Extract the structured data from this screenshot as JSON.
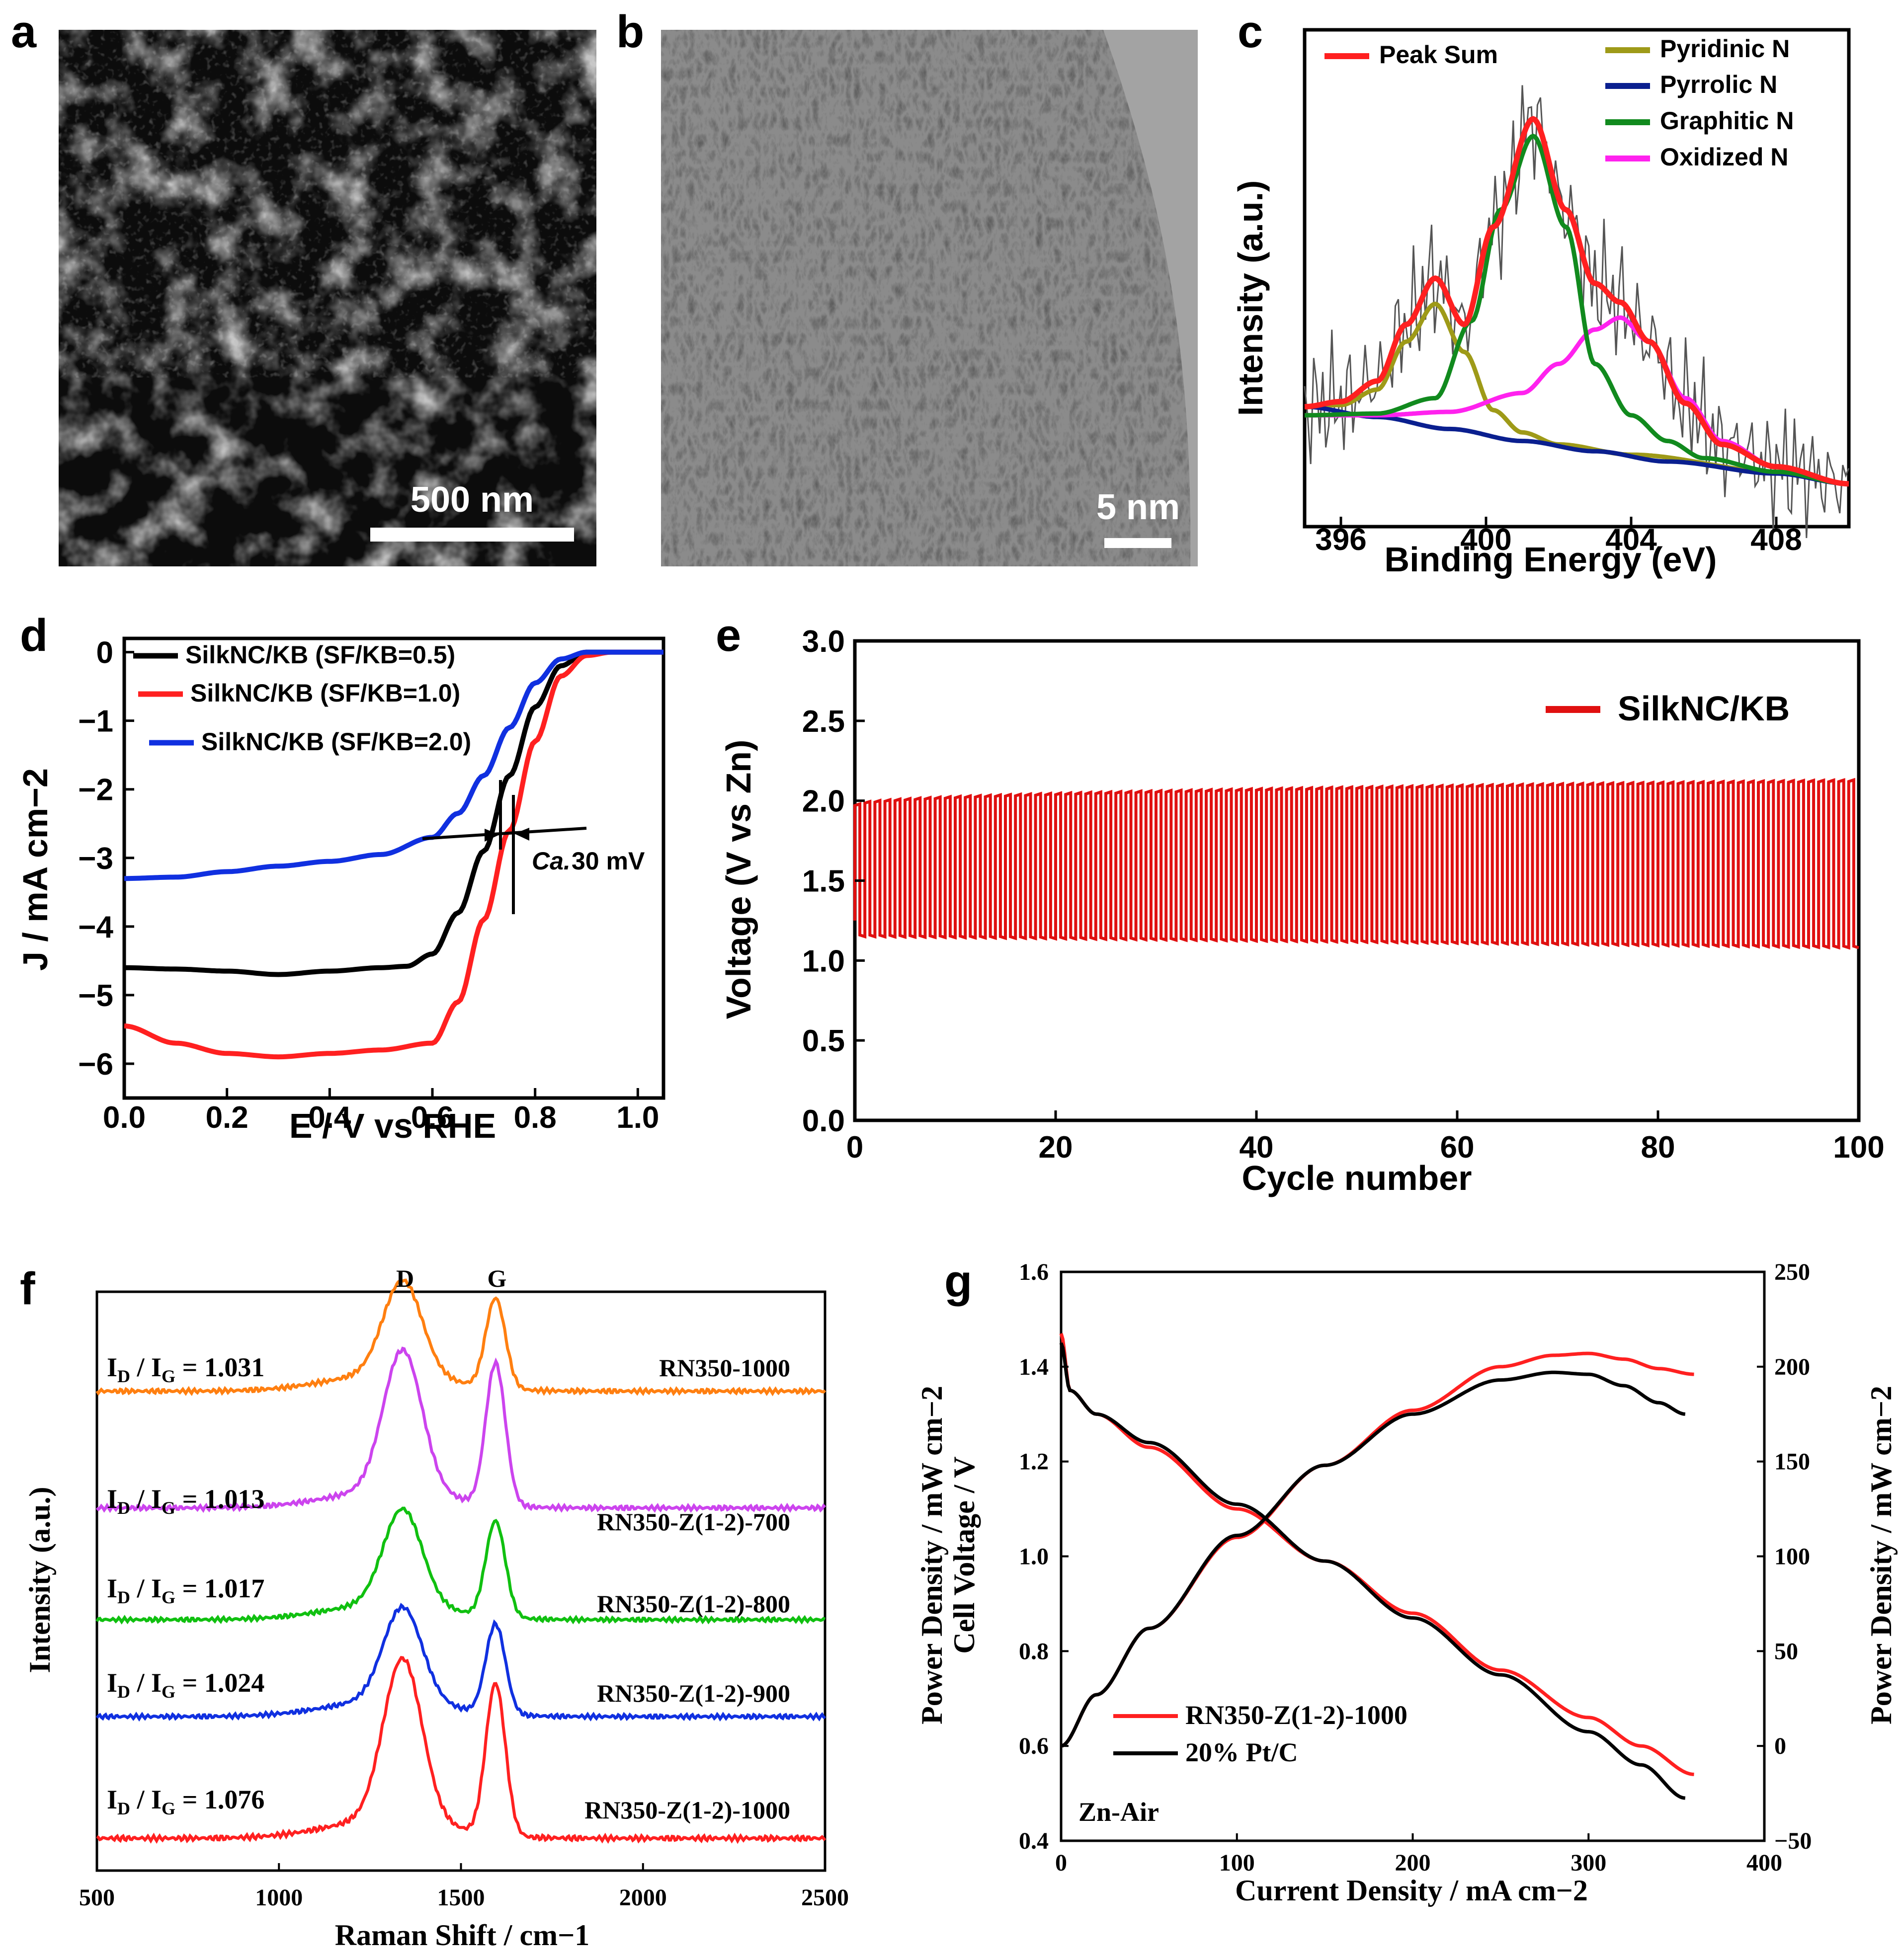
{
  "panel_labels": {
    "a": "a",
    "b": "b",
    "c": "c",
    "d": "d",
    "e": "e",
    "f": "f",
    "g": "g"
  },
  "images": {
    "a_scale": "500 nm",
    "b_scale": "5 nm"
  },
  "chart_data": [
    {
      "panel": "c",
      "type": "line",
      "title": "",
      "xlabel": "Binding Energy (eV)",
      "ylabel": "Intensity (a.u.)",
      "xlim": [
        395,
        410
      ],
      "x_ticks": [
        "396",
        "400",
        "404",
        "408"
      ],
      "grid": false,
      "legend_position": "top",
      "series": [
        {
          "name": "Peak Sum",
          "color": "#ff2020",
          "x": [
            395,
            396,
            397,
            397.8,
            398.6,
            399.4,
            400.2,
            401.3,
            402.2,
            403,
            403.7,
            404.5,
            405.5,
            406.5,
            408,
            410
          ],
          "y": [
            0.4,
            0.43,
            0.55,
            0.88,
            1.15,
            0.88,
            1.45,
            2.08,
            1.55,
            1.12,
            1.01,
            0.78,
            0.42,
            0.18,
            0.05,
            -0.05
          ]
        },
        {
          "name": "Pyridinic N",
          "color": "#9e9a18",
          "x": [
            395,
            396,
            397,
            397.8,
            398.6,
            399.4,
            400.2,
            401,
            402,
            404,
            408,
            410
          ],
          "y": [
            0.4,
            0.41,
            0.5,
            0.78,
            1.0,
            0.72,
            0.38,
            0.25,
            0.18,
            0.12,
            0.02,
            -0.05
          ]
        },
        {
          "name": "Pyrrolic N",
          "color": "#0a1f8f",
          "x": [
            395,
            397,
            399,
            401,
            403,
            405,
            408,
            410
          ],
          "y": [
            0.4,
            0.34,
            0.27,
            0.2,
            0.14,
            0.08,
            0.01,
            -0.05
          ]
        },
        {
          "name": "Graphitic N",
          "color": "#118a1e",
          "x": [
            395,
            397,
            398.6,
            399.6,
            400.4,
            401.3,
            402.2,
            403,
            404,
            405,
            406,
            408,
            410
          ],
          "y": [
            0.35,
            0.36,
            0.45,
            0.9,
            1.55,
            1.98,
            1.45,
            0.65,
            0.35,
            0.2,
            0.1,
            0.02,
            -0.05
          ]
        },
        {
          "name": "Oxidized N",
          "color": "#ff22ee",
          "x": [
            395,
            397,
            399,
            401,
            402,
            403,
            403.7,
            404.5,
            405.5,
            406.5,
            408,
            410
          ],
          "y": [
            0.35,
            0.35,
            0.37,
            0.48,
            0.65,
            0.85,
            0.92,
            0.78,
            0.45,
            0.2,
            0.05,
            -0.05
          ]
        }
      ]
    },
    {
      "panel": "d",
      "type": "line",
      "title": "",
      "xlabel": "E / V vs RHE",
      "ylabel": "J / mA cm−2",
      "xlim": [
        0.0,
        1.05
      ],
      "ylim": [
        -6.5,
        0.2
      ],
      "x_ticks": [
        "0.0",
        "0.2",
        "0.4",
        "0.6",
        "0.8",
        "1.0"
      ],
      "y_ticks": [
        "0",
        "−1",
        "−2",
        "−3",
        "−4",
        "−5",
        "−6"
      ],
      "annotation_prefix": "Ca.",
      "annotation_value": "30 mV",
      "grid": false,
      "legend_position": "top-left",
      "series": [
        {
          "name": "SilkNC/KB (SF/KB=0.5)",
          "color": "#000000",
          "x": [
            0.0,
            0.1,
            0.2,
            0.3,
            0.4,
            0.5,
            0.55,
            0.6,
            0.65,
            0.7,
            0.75,
            0.8,
            0.85,
            0.9,
            0.95,
            1.05
          ],
          "y": [
            -4.6,
            -4.62,
            -4.65,
            -4.7,
            -4.65,
            -4.6,
            -4.58,
            -4.4,
            -3.8,
            -2.9,
            -1.8,
            -0.8,
            -0.2,
            0.0,
            0.0,
            0.0
          ]
        },
        {
          "name": "SilkNC/KB (SF/KB=1.0)",
          "color": "#ff2020",
          "x": [
            0.0,
            0.1,
            0.2,
            0.3,
            0.4,
            0.5,
            0.6,
            0.65,
            0.7,
            0.75,
            0.8,
            0.85,
            0.9,
            0.95,
            1.05
          ],
          "y": [
            -5.45,
            -5.7,
            -5.85,
            -5.9,
            -5.85,
            -5.8,
            -5.7,
            -5.1,
            -3.9,
            -2.6,
            -1.3,
            -0.35,
            -0.05,
            0.0,
            0.0
          ]
        },
        {
          "name": "SilkNC/KB (SF/KB=2.0)",
          "color": "#1030e0",
          "x": [
            0.0,
            0.1,
            0.2,
            0.3,
            0.4,
            0.5,
            0.6,
            0.65,
            0.7,
            0.75,
            0.8,
            0.85,
            0.9,
            0.95,
            1.05
          ],
          "y": [
            -3.3,
            -3.28,
            -3.2,
            -3.12,
            -3.05,
            -2.95,
            -2.7,
            -2.35,
            -1.8,
            -1.1,
            -0.45,
            -0.1,
            0.0,
            0.0,
            0.0
          ]
        }
      ]
    },
    {
      "panel": "e",
      "type": "line",
      "title": "",
      "xlabel": "Cycle number",
      "ylabel": "Voltage (V vs Zn)",
      "xlim": [
        0,
        100
      ],
      "ylim": [
        0.0,
        3.0
      ],
      "x_ticks": [
        "0",
        "20",
        "40",
        "60",
        "80",
        "100"
      ],
      "y_ticks": [
        "0.0",
        "0.5",
        "1.0",
        "1.5",
        "2.0",
        "2.5",
        "3.0"
      ],
      "grid": false,
      "legend_position": "top-right",
      "series": [
        {
          "name": "SilkNC/KB",
          "color": "#e01010",
          "cycles": 100,
          "charge_voltage_start": 1.97,
          "charge_voltage_end": 2.12,
          "discharge_voltage_start": 1.16,
          "discharge_voltage_end": 1.09
        }
      ]
    },
    {
      "panel": "f",
      "type": "line",
      "title": "",
      "xlabel": "Raman Shift / cm−1",
      "ylabel": "Intensity (a.u.)",
      "xlim": [
        500,
        2500
      ],
      "x_ticks": [
        "500",
        "1000",
        "1500",
        "2000",
        "2500"
      ],
      "peak_labels": [
        "D",
        "G"
      ],
      "grid": false,
      "series": [
        {
          "name": "RN350-1000",
          "ratio_text": "= 1.031",
          "color": "#ff7f10",
          "d_peak": 1.0,
          "g_peak": 0.95
        },
        {
          "name": "RN350-Z(1-2)-700",
          "ratio_text": "= 1.013",
          "color": "#cc44ee",
          "d_peak": 1.5,
          "g_peak": 1.5
        },
        {
          "name": "RN350-Z(1-2)-800",
          "ratio_text": "= 1.017",
          "color": "#10c010",
          "d_peak": 1.1,
          "g_peak": 1.1
        },
        {
          "name": "RN350-Z(1-2)-900",
          "ratio_text": "= 1.024",
          "color": "#1030e0",
          "d_peak": 1.05,
          "g_peak": 1.0
        },
        {
          "name": "RN350-Z(1-2)-1000",
          "ratio_text": "= 1.076",
          "color": "#ff2020",
          "d_peak": 1.55,
          "g_peak": 1.45
        }
      ],
      "ratio_prefix": "I",
      "ratio_sub_d": "D",
      "ratio_slash": "/ I",
      "ratio_sub_g": "G"
    },
    {
      "panel": "g",
      "type": "line",
      "title": "",
      "xlabel": "Current Density / mA cm−2",
      "ylabel_left_1": "Power Density / mW cm−2",
      "ylabel_left_2": "Cell Voltage / V",
      "ylabel_right": "Power Density / mW cm−2",
      "xlim": [
        0,
        400
      ],
      "ylim_left": [
        0.4,
        1.6
      ],
      "ylim_right": [
        -50,
        250
      ],
      "x_ticks": [
        "0",
        "100",
        "200",
        "300",
        "400"
      ],
      "y_ticks_left": [
        "0.4",
        "0.6",
        "0.8",
        "1.0",
        "1.2",
        "1.4",
        "1.6"
      ],
      "y_ticks_right": [
        "−50",
        "0",
        "50",
        "100",
        "150",
        "200",
        "250"
      ],
      "annotation": "Zn-Air",
      "grid": false,
      "legend_position": "bottom-left",
      "series": [
        {
          "name": "RN350-Z(1-2)-1000",
          "color": "#ff2020",
          "voltage_x": [
            0,
            5,
            20,
            50,
            100,
            150,
            200,
            250,
            300,
            330,
            360
          ],
          "voltage_y": [
            1.47,
            1.35,
            1.3,
            1.23,
            1.1,
            0.99,
            0.88,
            0.76,
            0.66,
            0.6,
            0.54
          ],
          "power_x": [
            0,
            20,
            50,
            100,
            150,
            200,
            250,
            280,
            300,
            320,
            340,
            360
          ],
          "power_y": [
            0,
            27,
            62,
            110,
            148,
            177,
            200,
            206,
            207,
            204,
            199,
            196
          ]
        },
        {
          "name": "20% Pt/C",
          "color": "#000000",
          "voltage_x": [
            0,
            5,
            20,
            50,
            100,
            150,
            200,
            250,
            300,
            330,
            355
          ],
          "voltage_y": [
            1.45,
            1.35,
            1.3,
            1.24,
            1.11,
            0.99,
            0.87,
            0.75,
            0.63,
            0.56,
            0.49
          ],
          "power_x": [
            0,
            20,
            50,
            100,
            150,
            200,
            250,
            280,
            300,
            320,
            340,
            355
          ],
          "power_y": [
            0,
            27,
            62,
            111,
            148,
            175,
            193,
            197,
            196,
            190,
            181,
            175
          ]
        }
      ]
    }
  ]
}
